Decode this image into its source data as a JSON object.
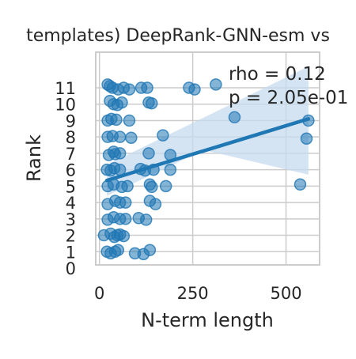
{
  "chart_data": {
    "type": "scatter",
    "title": "templates) DeepRank-GNN-esm vs",
    "xlabel": "N-term length",
    "ylabel": "Rank",
    "xlim": [
      -10,
      590
    ],
    "ylim": [
      0,
      12.3
    ],
    "x_ticks": [
      0,
      250,
      500
    ],
    "y_ticks": [
      0,
      1,
      2,
      3,
      4,
      5,
      6,
      7,
      8,
      9,
      10,
      11
    ],
    "grid": true,
    "annotations": [
      "rho = 0.12",
      "p = 2.05e-01"
    ],
    "colors": {
      "point": "#1f77b4",
      "line": "#1f77b4",
      "band": "#c6dbef",
      "grid": "#cccccc",
      "frame": "#cccccc"
    },
    "regression": {
      "x": [
        20,
        560
      ],
      "y": [
        5.35,
        9.1
      ],
      "ci_upper": [
        6.3,
        12.3
      ],
      "ci_lower": [
        4.4,
        5.7
      ],
      "ci_mid": [
        280,
        7.2
      ]
    },
    "points": [
      {
        "x": 22,
        "y": 11.2
      },
      {
        "x": 28,
        "y": 11.1
      },
      {
        "x": 35,
        "y": 11.0
      },
      {
        "x": 50,
        "y": 10.9
      },
      {
        "x": 65,
        "y": 11.0
      },
      {
        "x": 80,
        "y": 10.9
      },
      {
        "x": 112,
        "y": 11.0
      },
      {
        "x": 128,
        "y": 11.0
      },
      {
        "x": 240,
        "y": 11.0
      },
      {
        "x": 255,
        "y": 10.9
      },
      {
        "x": 312,
        "y": 11.2
      },
      {
        "x": 28,
        "y": 10.2
      },
      {
        "x": 38,
        "y": 10.0
      },
      {
        "x": 48,
        "y": 9.95
      },
      {
        "x": 60,
        "y": 10.1
      },
      {
        "x": 132,
        "y": 10.1
      },
      {
        "x": 140,
        "y": 10.05
      },
      {
        "x": 22,
        "y": 9.0
      },
      {
        "x": 32,
        "y": 9.1
      },
      {
        "x": 45,
        "y": 9.05
      },
      {
        "x": 80,
        "y": 9.0
      },
      {
        "x": 362,
        "y": 9.2
      },
      {
        "x": 560,
        "y": 9.0
      },
      {
        "x": 22,
        "y": 8.0
      },
      {
        "x": 35,
        "y": 8.05
      },
      {
        "x": 55,
        "y": 8.0
      },
      {
        "x": 85,
        "y": 7.95
      },
      {
        "x": 170,
        "y": 8.1
      },
      {
        "x": 555,
        "y": 7.9
      },
      {
        "x": 25,
        "y": 6.9
      },
      {
        "x": 38,
        "y": 7.1
      },
      {
        "x": 42,
        "y": 6.95
      },
      {
        "x": 55,
        "y": 7.0
      },
      {
        "x": 132,
        "y": 7.0
      },
      {
        "x": 190,
        "y": 6.9
      },
      {
        "x": 20,
        "y": 6.0
      },
      {
        "x": 30,
        "y": 5.95
      },
      {
        "x": 40,
        "y": 6.1
      },
      {
        "x": 55,
        "y": 6.0
      },
      {
        "x": 110,
        "y": 6.05
      },
      {
        "x": 122,
        "y": 5.95
      },
      {
        "x": 145,
        "y": 6.0
      },
      {
        "x": 190,
        "y": 6.0
      },
      {
        "x": 22,
        "y": 5.0
      },
      {
        "x": 38,
        "y": 5.1
      },
      {
        "x": 60,
        "y": 4.95
      },
      {
        "x": 75,
        "y": 5.0
      },
      {
        "x": 135,
        "y": 5.1
      },
      {
        "x": 140,
        "y": 4.95
      },
      {
        "x": 178,
        "y": 5.0
      },
      {
        "x": 538,
        "y": 5.1
      },
      {
        "x": 22,
        "y": 3.9
      },
      {
        "x": 42,
        "y": 4.1
      },
      {
        "x": 55,
        "y": 4.0
      },
      {
        "x": 70,
        "y": 4.0
      },
      {
        "x": 135,
        "y": 4.1
      },
      {
        "x": 150,
        "y": 3.9
      },
      {
        "x": 22,
        "y": 2.95
      },
      {
        "x": 38,
        "y": 3.1
      },
      {
        "x": 55,
        "y": 3.0
      },
      {
        "x": 70,
        "y": 3.0
      },
      {
        "x": 105,
        "y": 3.05
      },
      {
        "x": 125,
        "y": 2.95
      },
      {
        "x": 12,
        "y": 2.0
      },
      {
        "x": 30,
        "y": 2.1
      },
      {
        "x": 40,
        "y": 1.9
      },
      {
        "x": 48,
        "y": 2.0
      },
      {
        "x": 55,
        "y": 2.05
      },
      {
        "x": 65,
        "y": 1.95
      },
      {
        "x": 20,
        "y": 1.0
      },
      {
        "x": 30,
        "y": 0.9
      },
      {
        "x": 42,
        "y": 1.0
      },
      {
        "x": 50,
        "y": 1.1
      },
      {
        "x": 95,
        "y": 0.9
      },
      {
        "x": 118,
        "y": 0.85
      },
      {
        "x": 135,
        "y": 1.1
      }
    ]
  }
}
